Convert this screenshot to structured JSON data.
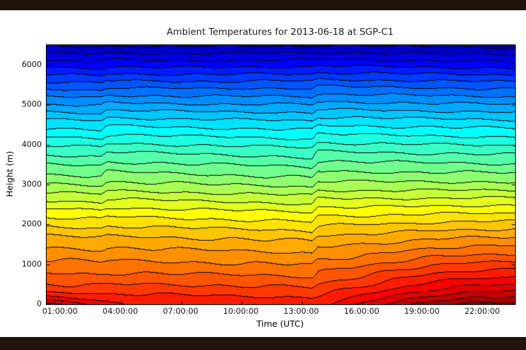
{
  "window": {
    "top_bar_color": "#1f130c",
    "bottom_bar_color": "#1f130c",
    "background_color": "#ffffff"
  },
  "chart_data": {
    "type": "contour",
    "title": "Ambient Temperatures for 2013-06-18 at SGP-C1",
    "xlabel": "Time (UTC)",
    "ylabel": "Height (m)",
    "x_tick_labels": [
      "01:00:00",
      "04:00:00",
      "07:00:00",
      "10:00:00",
      "13:00:00",
      "16:00:00",
      "19:00:00",
      "22:00:00"
    ],
    "x_tick_hours": [
      1,
      4,
      7,
      10,
      13,
      16,
      19,
      22
    ],
    "y_tick_labels": [
      "0",
      "1000",
      "2000",
      "3000",
      "4000",
      "5000",
      "6000"
    ],
    "y_ticks_m": [
      0,
      1000,
      2000,
      3000,
      4000,
      5000,
      6000
    ],
    "x_range_hours": [
      0.3,
      23.6
    ],
    "y_range_m": [
      0,
      6500
    ],
    "colormap": "jet",
    "contour_levels": 36,
    "contour_line_color": "#000000",
    "legend": "none",
    "grid_lines": "off",
    "value_scale": "normalized 0-1 colormap fraction (no colorbar shown in figure)",
    "features": [
      "warm near-surface pocket around 01:00-02:30",
      "elevated warm layer 100-400 m between 03:00 and 13:30",
      "vertical sounding discontinuities near 03:10 and 13:30",
      "strong surface warming fanning upward from ~14:00 to 23:30, darkest red after 19:00"
    ],
    "grid": {
      "times_hours": [
        0.3,
        1.5,
        3.0,
        3.3,
        5.0,
        7.0,
        9.0,
        11.0,
        13.0,
        13.5,
        13.8,
        15.5,
        17.5,
        19.5,
        21.5,
        23.6
      ],
      "heights_m": [
        0,
        150,
        400,
        800,
        1200,
        1700,
        2300,
        3000,
        3800,
        4600,
        5500,
        6500
      ],
      "values": [
        [
          0.925,
          0.905,
          0.875,
          0.868,
          0.848,
          0.84,
          0.836,
          0.834,
          0.836,
          0.842,
          0.852,
          0.885,
          0.925,
          0.96,
          0.98,
          0.982
        ],
        [
          0.87,
          0.862,
          0.85,
          0.848,
          0.845,
          0.842,
          0.839,
          0.837,
          0.837,
          0.837,
          0.842,
          0.862,
          0.898,
          0.928,
          0.95,
          0.953
        ],
        [
          0.815,
          0.813,
          0.812,
          0.815,
          0.817,
          0.815,
          0.813,
          0.811,
          0.809,
          0.807,
          0.815,
          0.833,
          0.858,
          0.883,
          0.9,
          0.903
        ],
        [
          0.777,
          0.775,
          0.773,
          0.776,
          0.776,
          0.774,
          0.772,
          0.77,
          0.768,
          0.766,
          0.778,
          0.79,
          0.81,
          0.83,
          0.841,
          0.844
        ],
        [
          0.743,
          0.741,
          0.738,
          0.742,
          0.74,
          0.738,
          0.736,
          0.734,
          0.732,
          0.73,
          0.744,
          0.748,
          0.761,
          0.776,
          0.784,
          0.786
        ],
        [
          0.697,
          0.695,
          0.692,
          0.697,
          0.695,
          0.692,
          0.69,
          0.687,
          0.685,
          0.683,
          0.699,
          0.701,
          0.707,
          0.715,
          0.719,
          0.721
        ],
        [
          0.625,
          0.623,
          0.62,
          0.628,
          0.626,
          0.623,
          0.62,
          0.617,
          0.614,
          0.612,
          0.63,
          0.63,
          0.632,
          0.635,
          0.637,
          0.638
        ],
        [
          0.53,
          0.528,
          0.525,
          0.537,
          0.535,
          0.532,
          0.528,
          0.525,
          0.522,
          0.52,
          0.539,
          0.537,
          0.537,
          0.537,
          0.537,
          0.537
        ],
        [
          0.44,
          0.438,
          0.435,
          0.448,
          0.446,
          0.443,
          0.44,
          0.437,
          0.434,
          0.432,
          0.45,
          0.448,
          0.446,
          0.444,
          0.442,
          0.44
        ],
        [
          0.34,
          0.338,
          0.335,
          0.347,
          0.345,
          0.342,
          0.34,
          0.338,
          0.336,
          0.334,
          0.349,
          0.347,
          0.345,
          0.343,
          0.341,
          0.339
        ],
        [
          0.21,
          0.208,
          0.205,
          0.215,
          0.213,
          0.211,
          0.211,
          0.213,
          0.213,
          0.212,
          0.22,
          0.218,
          0.216,
          0.214,
          0.212,
          0.21
        ],
        [
          0.055,
          0.053,
          0.051,
          0.055,
          0.053,
          0.052,
          0.053,
          0.055,
          0.055,
          0.054,
          0.057,
          0.055,
          0.053,
          0.051,
          0.049,
          0.047
        ]
      ]
    }
  }
}
